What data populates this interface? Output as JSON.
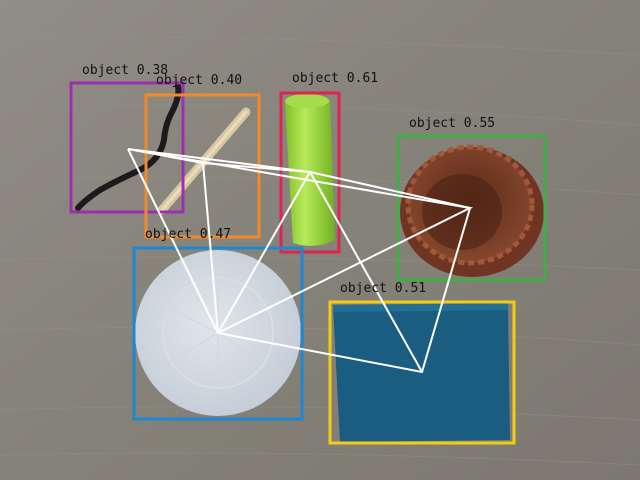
{
  "detections": [
    {
      "label": "object 0.38",
      "color": "#9b2fae",
      "object": "black-pipe-cleaner"
    },
    {
      "label": "object 0.40",
      "color": "#f08a2c",
      "object": "wooden-stick"
    },
    {
      "label": "object 0.61",
      "color": "#e0244f",
      "object": "green-cylinder"
    },
    {
      "label": "object 0.55",
      "color": "#3fae47",
      "object": "brown-bowl"
    },
    {
      "label": "object 0.47",
      "color": "#1e88d0",
      "object": "translucent-plate"
    },
    {
      "label": "object 0.51",
      "color": "#f2cd16",
      "object": "blue-board"
    }
  ],
  "colors": {
    "table": "#8a8782",
    "overlay_lines": "#ffffff"
  }
}
